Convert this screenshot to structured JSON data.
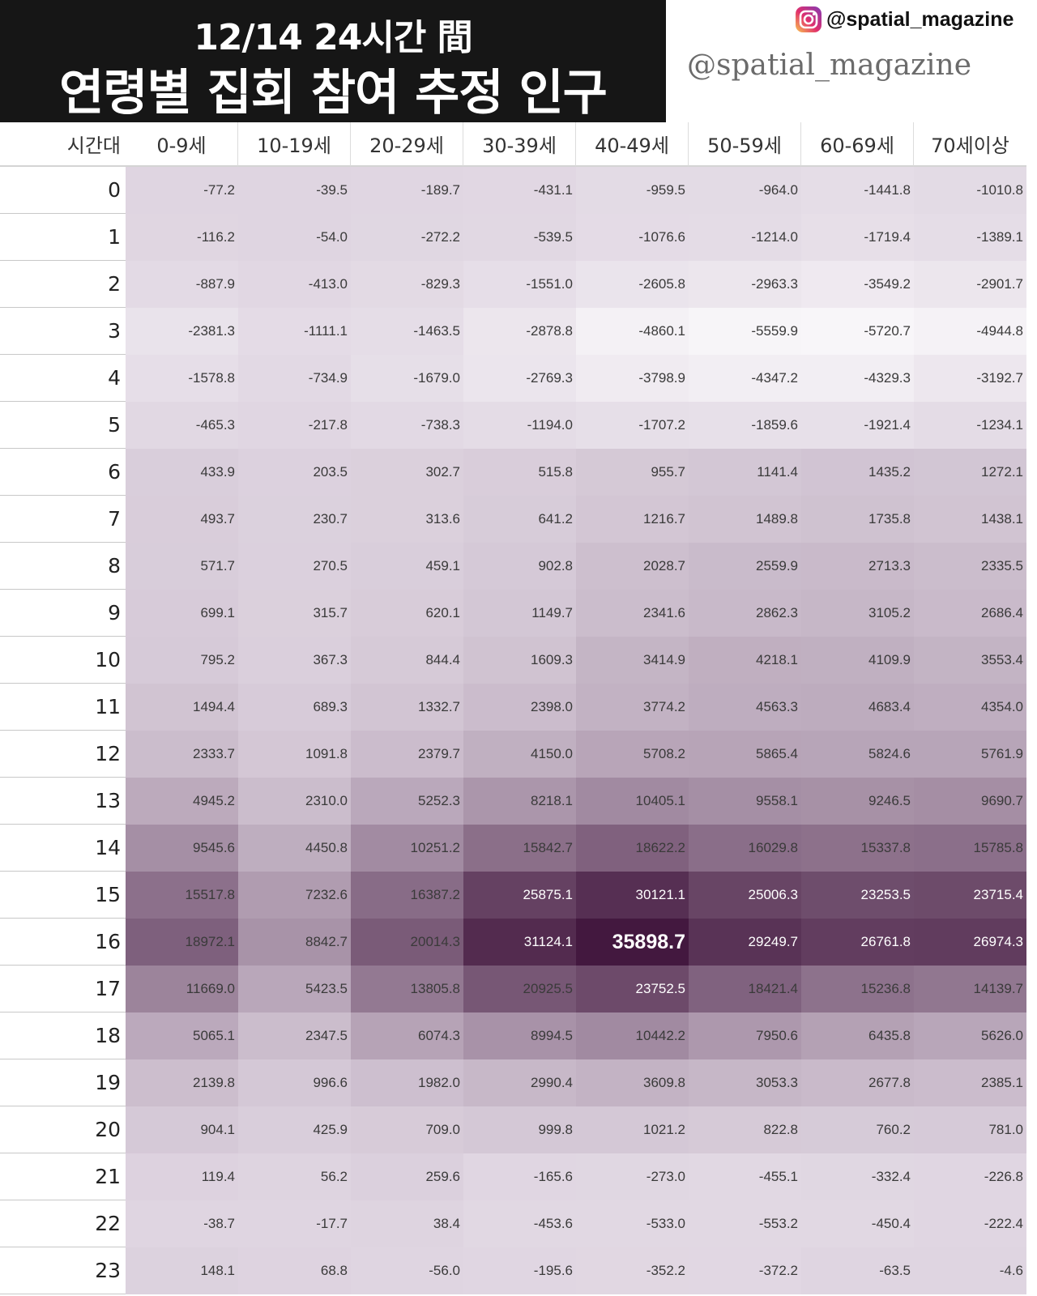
{
  "header": {
    "title_line1": "12/14 24시간 間",
    "title_line2": "연령별 집회 참여 추정 인구",
    "instagram_handle": "@spatial_magazine",
    "watermark": "@spatial_magazine",
    "instagram_icon": "instagram-icon"
  },
  "colors": {
    "low": "#f8f6f9",
    "high": "#43183f",
    "title_bg": "#161616"
  },
  "chart_data": {
    "type": "heatmap",
    "title": "연령별 집회 참여 추정 인구",
    "row_header_label": "시간대",
    "columns": [
      "0-9세",
      "10-19세",
      "20-29세",
      "30-39세",
      "40-49세",
      "50-59세",
      "60-69세",
      "70세이상"
    ],
    "rows": [
      "0",
      "1",
      "2",
      "3",
      "4",
      "5",
      "6",
      "7",
      "8",
      "9",
      "10",
      "11",
      "12",
      "13",
      "14",
      "15",
      "16",
      "17",
      "18",
      "19",
      "20",
      "21",
      "22",
      "23"
    ],
    "values": [
      [
        "-77.2",
        "-39.5",
        "-189.7",
        "-431.1",
        "-959.5",
        "-964.0",
        "-1441.8",
        "-1010.8"
      ],
      [
        "-116.2",
        "-54.0",
        "-272.2",
        "-539.5",
        "-1076.6",
        "-1214.0",
        "-1719.4",
        "-1389.1"
      ],
      [
        "-887.9",
        "-413.0",
        "-829.3",
        "-1551.0",
        "-2605.8",
        "-2963.3",
        "-3549.2",
        "-2901.7"
      ],
      [
        "-2381.3",
        "-1111.1",
        "-1463.5",
        "-2878.8",
        "-4860.1",
        "-5559.9",
        "-5720.7",
        "-4944.8"
      ],
      [
        "-1578.8",
        "-734.9",
        "-1679.0",
        "-2769.3",
        "-3798.9",
        "-4347.2",
        "-4329.3",
        "-3192.7"
      ],
      [
        "-465.3",
        "-217.8",
        "-738.3",
        "-1194.0",
        "-1707.2",
        "-1859.6",
        "-1921.4",
        "-1234.1"
      ],
      [
        "433.9",
        "203.5",
        "302.7",
        "515.8",
        "955.7",
        "1141.4",
        "1435.2",
        "1272.1"
      ],
      [
        "493.7",
        "230.7",
        "313.6",
        "641.2",
        "1216.7",
        "1489.8",
        "1735.8",
        "1438.1"
      ],
      [
        "571.7",
        "270.5",
        "459.1",
        "902.8",
        "2028.7",
        "2559.9",
        "2713.3",
        "2335.5"
      ],
      [
        "699.1",
        "315.7",
        "620.1",
        "1149.7",
        "2341.6",
        "2862.3",
        "3105.2",
        "2686.4"
      ],
      [
        "795.2",
        "367.3",
        "844.4",
        "1609.3",
        "3414.9",
        "4218.1",
        "4109.9",
        "3553.4"
      ],
      [
        "1494.4",
        "689.3",
        "1332.7",
        "2398.0",
        "3774.2",
        "4563.3",
        "4683.4",
        "4354.0"
      ],
      [
        "2333.7",
        "1091.8",
        "2379.7",
        "4150.0",
        "5708.2",
        "5865.4",
        "5824.6",
        "5761.9"
      ],
      [
        "4945.2",
        "2310.0",
        "5252.3",
        "8218.1",
        "10405.1",
        "9558.1",
        "9246.5",
        "9690.7"
      ],
      [
        "9545.6",
        "4450.8",
        "10251.2",
        "15842.7",
        "18622.2",
        "16029.8",
        "15337.8",
        "15785.8"
      ],
      [
        "15517.8",
        "7232.6",
        "16387.2",
        "25875.1",
        "30121.1",
        "25006.3",
        "23253.5",
        "23715.4"
      ],
      [
        "18972.1",
        "8842.7",
        "20014.3",
        "31124.1",
        "35898.7",
        "29249.7",
        "26761.8",
        "26974.3"
      ],
      [
        "11669.0",
        "5423.5",
        "13805.8",
        "20925.5",
        "23752.5",
        "18421.4",
        "15236.8",
        "14139.7"
      ],
      [
        "5065.1",
        "2347.5",
        "6074.3",
        "8994.5",
        "10442.2",
        "7950.6",
        "6435.8",
        "5626.0"
      ],
      [
        "2139.8",
        "996.6",
        "1982.0",
        "2990.4",
        "3609.8",
        "3053.3",
        "2677.8",
        "2385.1"
      ],
      [
        "904.1",
        "425.9",
        "709.0",
        "999.8",
        "1021.2",
        "822.8",
        "760.2",
        "781.0"
      ],
      [
        "119.4",
        "56.2",
        "259.6",
        "-165.6",
        "-273.0",
        "-455.1",
        "-332.4",
        "-226.8"
      ],
      [
        "-38.7",
        "-17.7",
        "38.4",
        "-453.6",
        "-533.0",
        "-553.2",
        "-450.4",
        "-222.4"
      ],
      [
        "148.1",
        "68.8",
        "-56.0",
        "-195.6",
        "-352.2",
        "-372.2",
        "-63.5",
        "-4.6"
      ]
    ],
    "color_range": [
      -5720.7,
      35898.7
    ],
    "highlighted_max": "35898.7"
  }
}
